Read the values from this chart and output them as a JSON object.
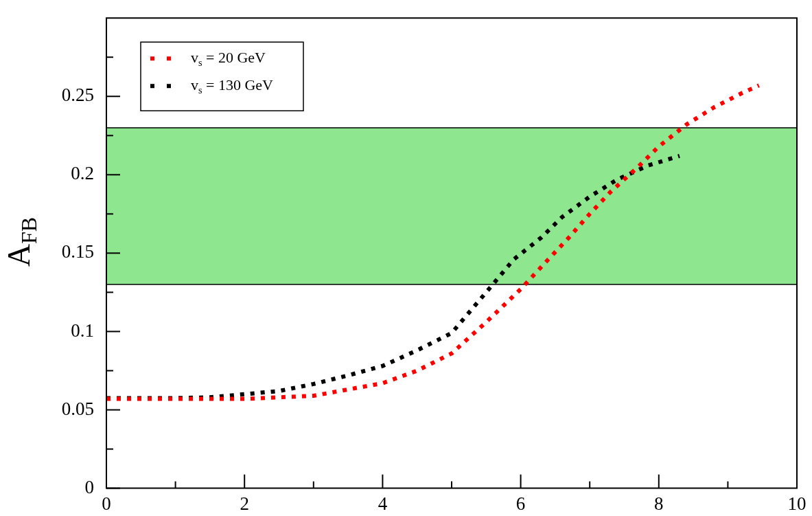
{
  "chart_data": {
    "type": "line",
    "ylabel": "A$_{FB}$",
    "xlim": [
      0,
      10
    ],
    "ylim": [
      0,
      0.3
    ],
    "xticks": [
      0,
      {
        "value": 1,
        "label": null
      },
      2,
      {
        "value": 3,
        "label": null
      },
      4,
      {
        "value": 5,
        "label": null
      },
      6,
      {
        "value": 7,
        "label": null
      },
      8,
      {
        "value": 9,
        "label": null
      },
      10
    ],
    "yticks": [
      0,
      {
        "value": 0.025,
        "label": null
      },
      0.05,
      {
        "value": 0.075,
        "label": null
      },
      0.1,
      {
        "value": 0.125,
        "label": null
      },
      0.15,
      {
        "value": 0.175,
        "label": null
      },
      0.2,
      {
        "value": 0.225,
        "label": null
      },
      0.25,
      {
        "value": 0.275,
        "label": null
      }
    ],
    "ref_lines": [
      {
        "axis": "y",
        "value": 0.13,
        "color": "#000000"
      },
      {
        "axis": "y",
        "value": 0.23,
        "color": "#000000"
      }
    ],
    "legend": "top left",
    "line_style": "dotted",
    "marker": "none",
    "bands": [
      {
        "axis": "y",
        "from": 0.13,
        "to": 0.23,
        "color": "#8ee68e"
      }
    ],
    "series": [
      {
        "name": "v$_{s}$ = 20 GeV",
        "color": "#ff0000",
        "x": [
          0,
          1,
          2,
          2.5,
          3,
          3.5,
          4,
          4.5,
          5,
          5.5,
          6,
          6.4,
          6.7,
          7,
          7.3,
          7.7,
          8,
          8.4,
          8.8,
          9.2,
          9.45
        ],
        "values": [
          0.057,
          0.057,
          0.057,
          0.058,
          0.059,
          0.063,
          0.067,
          0.075,
          0.086,
          0.106,
          0.127,
          0.146,
          0.16,
          0.175,
          0.189,
          0.205,
          0.218,
          0.232,
          0.243,
          0.252,
          0.257
        ]
      },
      {
        "name": "v$_{s}$ = 130 GeV",
        "color": "#000000",
        "x": [
          0,
          1,
          1.5,
          2,
          2.5,
          3,
          3.5,
          4,
          4.5,
          5,
          5.5,
          5.9,
          6.3,
          6.6,
          7,
          7.4,
          7.85,
          8.3
        ],
        "values": [
          0.0575,
          0.0575,
          0.058,
          0.06,
          0.062,
          0.0665,
          0.072,
          0.078,
          0.088,
          0.099,
          0.125,
          0.146,
          0.16,
          0.173,
          0.186,
          0.197,
          0.206,
          0.212
        ]
      }
    ]
  }
}
